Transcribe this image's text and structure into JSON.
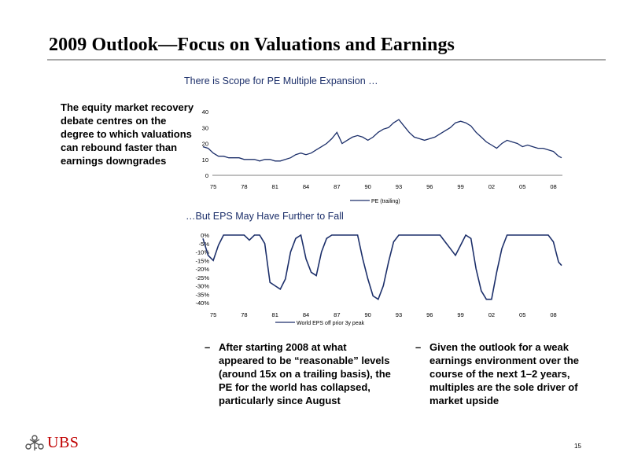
{
  "page": {
    "title": "2009 Outlook—Focus on Valuations and Earnings",
    "page_number": "15"
  },
  "left_text": "The equity market recovery debate centres on the degree to which valuations can rebound faster than earnings downgrades",
  "bullets": [
    {
      "dash": "–",
      "text": "After starting 2008 at what appeared to be “reasonable” levels (around 15x on a trailing basis), the PE for the world has collapsed, particularly since August"
    },
    {
      "dash": "–",
      "text": "Given the outlook for a weak earnings environment over the course of the next 1–2 years, multiples are the sole driver of market upside"
    }
  ],
  "logo": {
    "text": "UBS"
  },
  "chart_data": [
    {
      "type": "line",
      "title": "There is Scope for PE Multiple Expansion …",
      "legend": "PE (trailing)",
      "ylim": [
        0,
        40
      ],
      "yticks": [
        "40",
        "30",
        "20",
        "10",
        "0"
      ],
      "xticks": [
        "75",
        "78",
        "81",
        "84",
        "87",
        "90",
        "93",
        "96",
        "99",
        "02",
        "05",
        "08"
      ],
      "x": [
        1974,
        1974.5,
        1975,
        1975.5,
        1976,
        1976.5,
        1977,
        1977.5,
        1978,
        1978.5,
        1979,
        1979.5,
        1980,
        1980.5,
        1981,
        1981.5,
        1982,
        1982.5,
        1983,
        1983.5,
        1984,
        1984.5,
        1985,
        1985.5,
        1986,
        1986.5,
        1987,
        1987.5,
        1988,
        1988.5,
        1989,
        1989.5,
        1990,
        1990.5,
        1991,
        1991.5,
        1992,
        1992.5,
        1993,
        1993.5,
        1994,
        1994.5,
        1995,
        1995.5,
        1996,
        1996.5,
        1997,
        1997.5,
        1998,
        1998.5,
        1999,
        1999.5,
        2000,
        2000.5,
        2001,
        2001.5,
        2002,
        2002.5,
        2003,
        2003.5,
        2004,
        2004.5,
        2005,
        2005.5,
        2006,
        2006.5,
        2007,
        2007.5,
        2008,
        2008.5,
        2008.8
      ],
      "y": [
        18,
        17,
        14,
        12,
        12,
        11,
        11,
        11,
        10,
        10,
        10,
        9,
        10,
        10,
        9,
        9,
        10,
        11,
        13,
        14,
        13,
        14,
        16,
        18,
        20,
        23,
        27,
        20,
        22,
        24,
        25,
        24,
        22,
        24,
        27,
        29,
        30,
        33,
        35,
        31,
        27,
        24,
        23,
        22,
        23,
        24,
        26,
        28,
        30,
        33,
        34,
        33,
        31,
        27,
        24,
        21,
        19,
        17,
        20,
        22,
        21,
        20,
        18,
        19,
        18,
        17,
        17,
        16,
        15,
        12,
        11
      ]
    },
    {
      "type": "line",
      "title": "…But EPS May Have Further to Fall",
      "legend": "World EPS off prior 3y peak",
      "ylim": [
        -40,
        0
      ],
      "yticks": [
        "0%",
        "-5%",
        "-10%",
        "-15%",
        "-20%",
        "-25%",
        "-30%",
        "-35%",
        "-40%"
      ],
      "xticks": [
        "75",
        "78",
        "81",
        "84",
        "87",
        "90",
        "93",
        "96",
        "99",
        "02",
        "05",
        "08"
      ],
      "x": [
        1974,
        1974.5,
        1975,
        1975.5,
        1976,
        1976.5,
        1977,
        1977.5,
        1978,
        1978.5,
        1979,
        1979.5,
        1980,
        1980.5,
        1981,
        1981.5,
        1982,
        1982.5,
        1983,
        1983.5,
        1984,
        1984.5,
        1985,
        1985.5,
        1986,
        1986.5,
        1987,
        1987.5,
        1988,
        1988.5,
        1989,
        1989.5,
        1990,
        1990.5,
        1991,
        1991.5,
        1992,
        1992.5,
        1993,
        1993.5,
        1994,
        1994.5,
        1995,
        1995.5,
        1996,
        1996.5,
        1997,
        1997.5,
        1998,
        1998.5,
        1999,
        1999.5,
        2000,
        2000.5,
        2001,
        2001.5,
        2002,
        2002.5,
        2003,
        2003.5,
        2004,
        2004.5,
        2005,
        2005.5,
        2006,
        2006.5,
        2007,
        2007.5,
        2008,
        2008.5,
        2008.8
      ],
      "y": [
        -2,
        -12,
        -15,
        -6,
        0,
        0,
        0,
        0,
        0,
        -3,
        0,
        0,
        -5,
        -28,
        -30,
        -32,
        -26,
        -10,
        -2,
        0,
        -14,
        -22,
        -24,
        -10,
        -2,
        0,
        0,
        0,
        0,
        0,
        0,
        -14,
        -26,
        -36,
        -38,
        -30,
        -16,
        -4,
        0,
        0,
        0,
        0,
        0,
        0,
        0,
        0,
        0,
        -4,
        -8,
        -12,
        -6,
        0,
        -2,
        -20,
        -33,
        -38,
        -38,
        -22,
        -8,
        0,
        0,
        0,
        0,
        0,
        0,
        0,
        0,
        0,
        -4,
        -16,
        -18
      ]
    }
  ]
}
